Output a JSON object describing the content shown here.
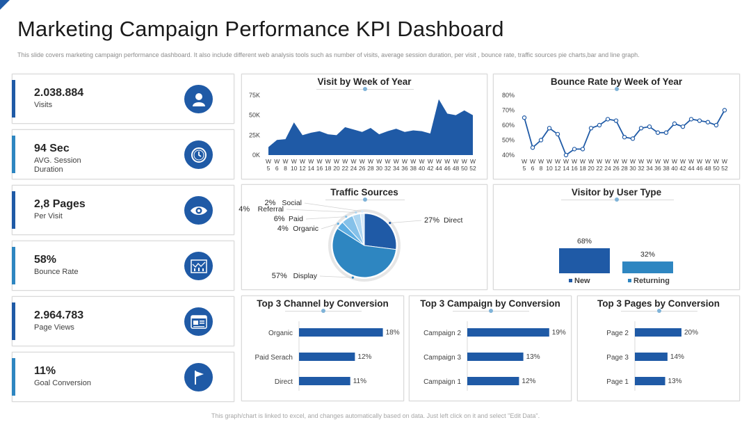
{
  "title": "Marketing Campaign Performance KPI Dashboard",
  "subtitle": "This slide covers marketing campaign performance dashboard. It also include different web analysis tools such as number of visits, average session duration, per visit , bounce rate, traffic sources pie charts,bar and line graph.",
  "footer": "This graph/chart is linked to excel, and changes automatically based on data. Just left click on it and select \"Edit Data\".",
  "kpis": [
    {
      "value": "2.038.884",
      "label": "Visits",
      "icon": "user-icon",
      "accent": "#1f5aa6"
    },
    {
      "value": "94 Sec",
      "label": "AVG. Session Duration",
      "icon": "clock-icon",
      "accent": "#2e86c1"
    },
    {
      "value": "2,8 Pages",
      "label": "Per Visit",
      "icon": "eye-icon",
      "accent": "#1f5aa6"
    },
    {
      "value": "58%",
      "label": "Bounce Rate",
      "icon": "bounce-chart-icon",
      "accent": "#2e86c1"
    },
    {
      "value": "2.964.783",
      "label": "Page Views",
      "icon": "browser-icon",
      "accent": "#1f5aa6"
    },
    {
      "value": "11%",
      "label": "Goal Conversion",
      "icon": "flag-icon",
      "accent": "#2e86c1"
    }
  ],
  "colors": {
    "dark_blue": "#1f5aa6",
    "mid_blue": "#2e86c1",
    "light_blue": "#5dade2"
  },
  "chart_data": [
    {
      "type": "area",
      "title": "Visit by Week of Year",
      "x": [
        "W 5",
        "W 6",
        "W 8",
        "W 10",
        "W 12",
        "W 14",
        "W 16",
        "W 18",
        "W 20",
        "W 22",
        "W 24",
        "W 26",
        "W 28",
        "W 30",
        "W 32",
        "W 34",
        "W 36",
        "W 38",
        "W 40",
        "W 42",
        "W 44",
        "W 46",
        "W 48",
        "W 50",
        "W 52"
      ],
      "values": [
        10000,
        19000,
        20000,
        41000,
        25000,
        28000,
        30000,
        26000,
        25000,
        35000,
        32000,
        29000,
        34000,
        26000,
        30000,
        33000,
        29000,
        31000,
        30000,
        27000,
        70000,
        52000,
        50000,
        56000,
        50000
      ],
      "ylim": [
        0,
        75000
      ],
      "yticks": [
        "0K",
        "25K",
        "50K",
        "75K"
      ],
      "color": "#1f5aa6"
    },
    {
      "type": "line",
      "title": "Bounce Rate by Week of Year",
      "x": [
        "W 5",
        "W 6",
        "W 8",
        "W 10",
        "W 12",
        "W 14",
        "W 16",
        "W 18",
        "W 20",
        "W 22",
        "W 24",
        "W 26",
        "W 28",
        "W 30",
        "W 32",
        "W 34",
        "W 36",
        "W 38",
        "W 40",
        "W 42",
        "W 44",
        "W 46",
        "W 48",
        "W 50",
        "W 52"
      ],
      "values": [
        65,
        45,
        50,
        58,
        54,
        40,
        44,
        44,
        58,
        60,
        64,
        63,
        52,
        51,
        58,
        59,
        55,
        55,
        61,
        59,
        64,
        63,
        62,
        60,
        70
      ],
      "ylim": [
        40,
        80
      ],
      "yticks": [
        "40%",
        "50%",
        "60%",
        "70%",
        "80%"
      ],
      "color": "#1f5aa6"
    },
    {
      "type": "pie",
      "title": "Traffic Sources",
      "slices": [
        {
          "label": "Direct",
          "value": 27,
          "text": "27%",
          "color": "#1f5aa6"
        },
        {
          "label": "Display",
          "value": 57,
          "text": "57%",
          "color": "#2e86c1"
        },
        {
          "label": "Organic",
          "value": 4,
          "text": "4%",
          "color": "#5dade2"
        },
        {
          "label": "Paid",
          "value": 6,
          "text": "6%",
          "color": "#85c1e9"
        },
        {
          "label": "Referral",
          "value": 4,
          "text": "4%",
          "color": "#aed6f1"
        },
        {
          "label": "Social",
          "value": 2,
          "text": "2%",
          "color": "#d6eaf8"
        }
      ]
    },
    {
      "type": "bar",
      "title": "Visitor by User Type",
      "categories": [
        "New",
        "Returning"
      ],
      "values": [
        68,
        32
      ],
      "labels": [
        "68%",
        "32%"
      ],
      "colors": [
        "#1f5aa6",
        "#2e86c1"
      ]
    },
    {
      "type": "bar",
      "orientation": "horizontal",
      "title": "Top 3 Channel by Conversion",
      "categories": [
        "Organic",
        "Paid Serach",
        "Direct"
      ],
      "values": [
        18,
        12,
        11
      ],
      "labels": [
        "18%",
        "12%",
        "11%"
      ]
    },
    {
      "type": "bar",
      "orientation": "horizontal",
      "title": "Top 3 Campaign by Conversion",
      "categories": [
        "Campaign 2",
        "Campaign 3",
        "Campaign 1"
      ],
      "values": [
        19,
        13,
        12
      ],
      "labels": [
        "19%",
        "13%",
        "12%"
      ]
    },
    {
      "type": "bar",
      "orientation": "horizontal",
      "title": "Top 3 Pages by Conversion",
      "categories": [
        "Page 2",
        "Page 3",
        "Page 1"
      ],
      "values": [
        20,
        14,
        13
      ],
      "labels": [
        "20%",
        "14%",
        "13%"
      ]
    }
  ]
}
